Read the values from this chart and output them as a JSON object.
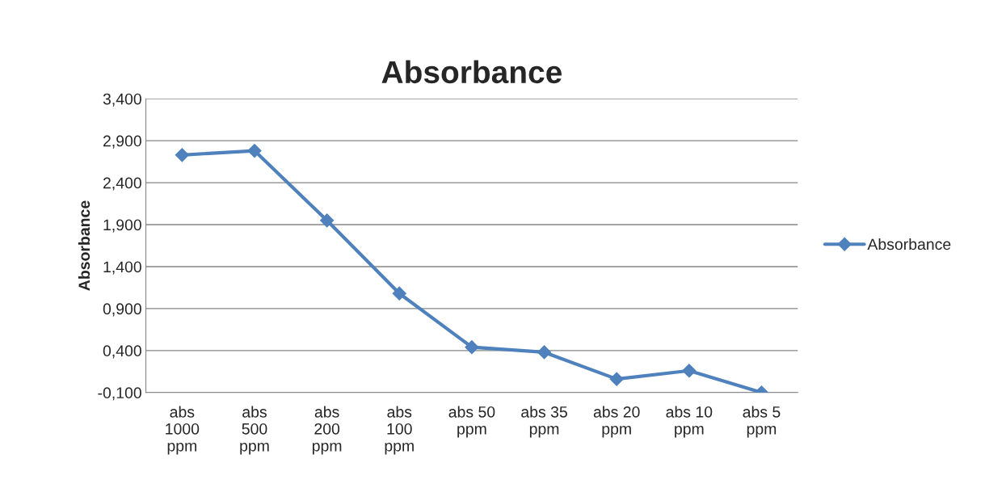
{
  "chart_data": {
    "type": "line",
    "title": "Absorbance",
    "ylabel": "Absorbance",
    "categories": [
      "abs\n1000\nppm",
      "abs\n500\nppm",
      "abs\n200\nppm",
      "abs\n100\nppm",
      "abs 50\nppm",
      "abs 35\nppm",
      "abs 20\nppm",
      "abs 10\nppm",
      "abs 5\nppm"
    ],
    "series": [
      {
        "name": "Absorbance",
        "color": "#4f81bd",
        "values": [
          2.73,
          2.78,
          1.95,
          1.08,
          0.44,
          0.38,
          0.06,
          0.16,
          -0.1
        ]
      }
    ],
    "ylim": [
      -0.1,
      3.4
    ],
    "yticks": [
      {
        "value": -0.1,
        "label": "-0,100"
      },
      {
        "value": 0.4,
        "label": "0,400"
      },
      {
        "value": 0.9,
        "label": "0,900"
      },
      {
        "value": 1.4,
        "label": "1,400"
      },
      {
        "value": 1.9,
        "label": "1,900"
      },
      {
        "value": 2.4,
        "label": "2,400"
      },
      {
        "value": 2.9,
        "label": "2,900"
      },
      {
        "value": 3.4,
        "label": "3,400"
      }
    ],
    "grid": "y",
    "legend": "right",
    "marker": "diamond",
    "line_style": "solid"
  }
}
